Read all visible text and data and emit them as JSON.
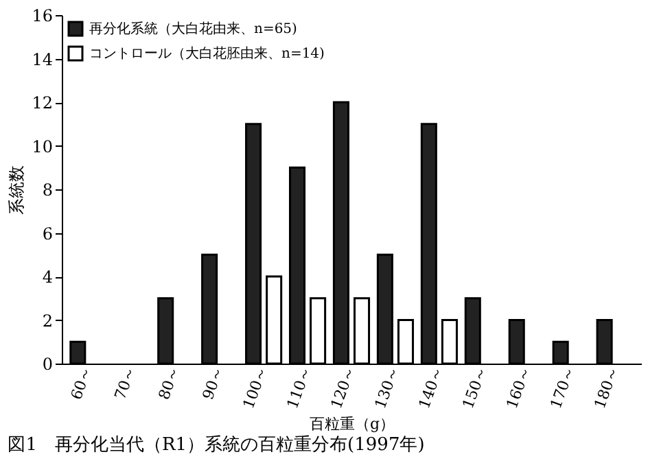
{
  "chart_data": {
    "type": "bar",
    "title": "図1　再分化当代（R1）系統の百粒重分布(1997年)",
    "xlabel": "百粒重（g）",
    "ylabel": "系統数",
    "categories": [
      "60～",
      "70～",
      "80～",
      "90～",
      "100～",
      "110～",
      "120～",
      "130～",
      "140～",
      "150～",
      "160～",
      "170～",
      "180～"
    ],
    "series": [
      {
        "name": "再分化系統（大白花由来、n=65)",
        "color": "#222222",
        "values": [
          1,
          0,
          3,
          5,
          11,
          9,
          12,
          5,
          11,
          3,
          2,
          1,
          2
        ]
      },
      {
        "name": "コントロール（大白花胚由来、n=14)",
        "color": "#ffffff",
        "values": [
          null,
          null,
          null,
          null,
          4,
          3,
          3,
          2,
          2,
          null,
          null,
          null,
          null
        ]
      }
    ],
    "ylim": [
      0,
      16
    ],
    "yticks": [
      0,
      2,
      4,
      6,
      8,
      10,
      12,
      14,
      16
    ],
    "grid": false,
    "legend": "top left"
  }
}
